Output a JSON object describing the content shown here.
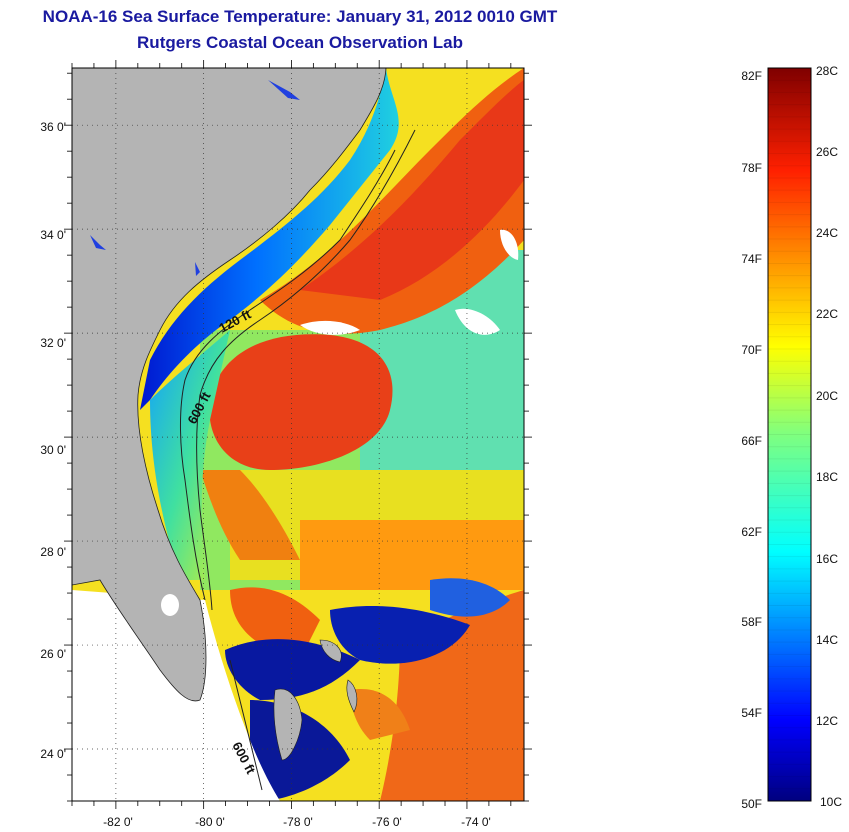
{
  "title": {
    "line1": "NOAA-16 Sea Surface Temperature:  January 31, 2012 0010 GMT",
    "line2": "Rutgers Coastal Ocean Observation Lab"
  },
  "map": {
    "lat_labels": [
      "36 0'",
      "34 0'",
      "32 0'",
      "30 0'",
      "28 0'",
      "26 0'",
      "24 0'"
    ],
    "lat_values": [
      36,
      34,
      32,
      30,
      28,
      26,
      24
    ],
    "lon_labels": [
      "-82 0'",
      "-80 0'",
      "-78 0'",
      "-76 0'",
      "-74 0'"
    ],
    "lon_values": [
      -82,
      -80,
      -78,
      -76,
      -74
    ],
    "lat_range": [
      23,
      37.1
    ],
    "lon_range": [
      -83,
      -72.7
    ],
    "contours": [
      "120 ft",
      "600 ft",
      "600 ft"
    ],
    "colors": {
      "land": "#b4b4b4",
      "no_data": "#ffffff",
      "cold": "#00008f",
      "warm": "#e83010"
    }
  },
  "colorbar": {
    "fahrenheit_labels": [
      "82F",
      "78F",
      "74F",
      "70F",
      "66F",
      "62F",
      "58F",
      "54F",
      "50F"
    ],
    "fahrenheit_values": [
      82,
      78,
      74,
      70,
      66,
      62,
      58,
      54,
      50
    ],
    "celsius_labels": [
      "28C",
      "26C",
      "24C",
      "22C",
      "20C",
      "18C",
      "16C",
      "14C",
      "12C",
      "10C"
    ],
    "celsius_values": [
      28,
      26,
      24,
      22,
      20,
      18,
      16,
      14,
      12,
      10
    ],
    "range_c": [
      10,
      28
    ],
    "colormap": "jet"
  }
}
